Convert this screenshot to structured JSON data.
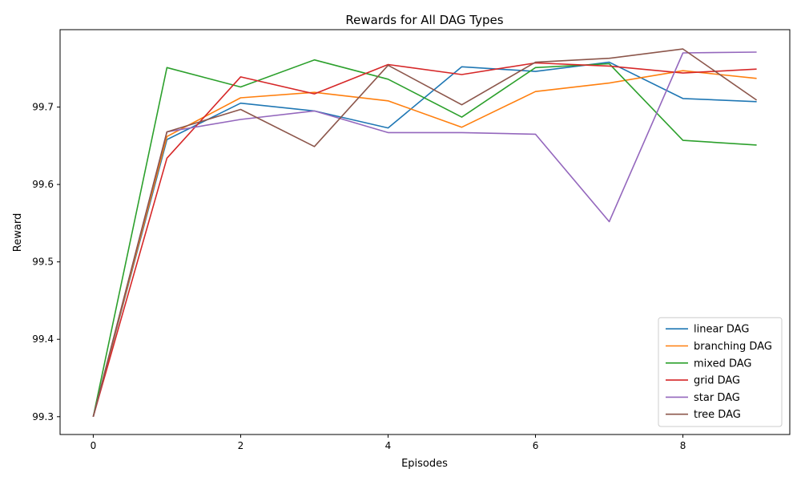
{
  "chart_data": {
    "type": "line",
    "title": "Rewards for All DAG Types",
    "xlabel": "Episodes",
    "ylabel": "Reward",
    "x": [
      0,
      1,
      2,
      3,
      4,
      5,
      6,
      7,
      8,
      9
    ],
    "xlim": [
      -0.45,
      9.45
    ],
    "ylim": [
      99.277,
      99.8
    ],
    "xticks": [
      0,
      2,
      4,
      6,
      8
    ],
    "yticks": [
      99.3,
      99.4,
      99.5,
      99.6,
      99.7
    ],
    "grid": false,
    "legend_position": "lower-right",
    "series": [
      {
        "name": "linear DAG",
        "color": "#1f77b4",
        "values": [
          99.3,
          99.658,
          99.705,
          99.695,
          99.673,
          99.752,
          99.746,
          99.758,
          99.711,
          99.707
        ]
      },
      {
        "name": "branching DAG",
        "color": "#ff7f0e",
        "values": [
          99.3,
          99.662,
          99.712,
          99.719,
          99.708,
          99.674,
          99.72,
          99.731,
          99.747,
          99.737
        ]
      },
      {
        "name": "mixed DAG",
        "color": "#2ca02c",
        "values": [
          99.3,
          99.751,
          99.726,
          99.761,
          99.736,
          99.687,
          99.751,
          99.756,
          99.657,
          99.651
        ]
      },
      {
        "name": "grid DAG",
        "color": "#d62728",
        "values": [
          99.3,
          99.634,
          99.739,
          99.717,
          99.755,
          99.742,
          99.757,
          99.753,
          99.744,
          99.749
        ]
      },
      {
        "name": "star DAG",
        "color": "#9467bd",
        "values": [
          99.3,
          99.668,
          99.684,
          99.695,
          99.667,
          99.667,
          99.665,
          99.552,
          99.77,
          99.771
        ]
      },
      {
        "name": "tree DAG",
        "color": "#8c564b",
        "values": [
          99.3,
          99.668,
          99.697,
          99.649,
          99.754,
          99.703,
          99.758,
          99.763,
          99.775,
          99.709
        ]
      }
    ]
  }
}
